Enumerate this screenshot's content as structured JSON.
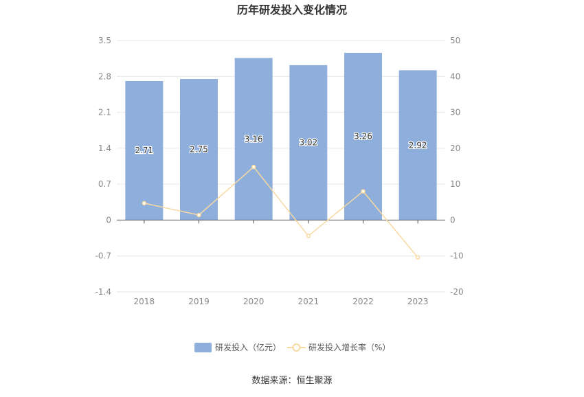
{
  "chart_data": {
    "type": "bar",
    "title": "历年研发投入变化情况",
    "categories": [
      "2018",
      "2019",
      "2020",
      "2021",
      "2022",
      "2023"
    ],
    "series": [
      {
        "name": "研发投入（亿元）",
        "type": "bar",
        "axis": "left",
        "values": [
          2.71,
          2.75,
          3.16,
          3.02,
          3.26,
          2.92
        ],
        "data_labels": [
          "2.71",
          "2.75",
          "3.16",
          "3.02",
          "3.26",
          "2.92"
        ],
        "color": "#8eaedb"
      },
      {
        "name": "研发投入增长率（%）",
        "type": "line",
        "axis": "right",
        "values": [
          4.7,
          1.4,
          14.8,
          -4.4,
          8.0,
          -10.4
        ],
        "color": "#f9d9a0"
      }
    ],
    "y_left": {
      "ylim": [
        -1.4,
        3.5
      ],
      "ticks": [
        "3.5",
        "2.8",
        "2.1",
        "1.4",
        "0.7",
        "0",
        "-0.7",
        "-1.4"
      ]
    },
    "y_right": {
      "ylim": [
        -20,
        50
      ],
      "ticks": [
        "50",
        "40",
        "30",
        "20",
        "10",
        "0",
        "-10",
        "-20"
      ]
    },
    "grid": true,
    "legend_position": "bottom-center"
  },
  "source_note": "数据来源：恒生聚源"
}
